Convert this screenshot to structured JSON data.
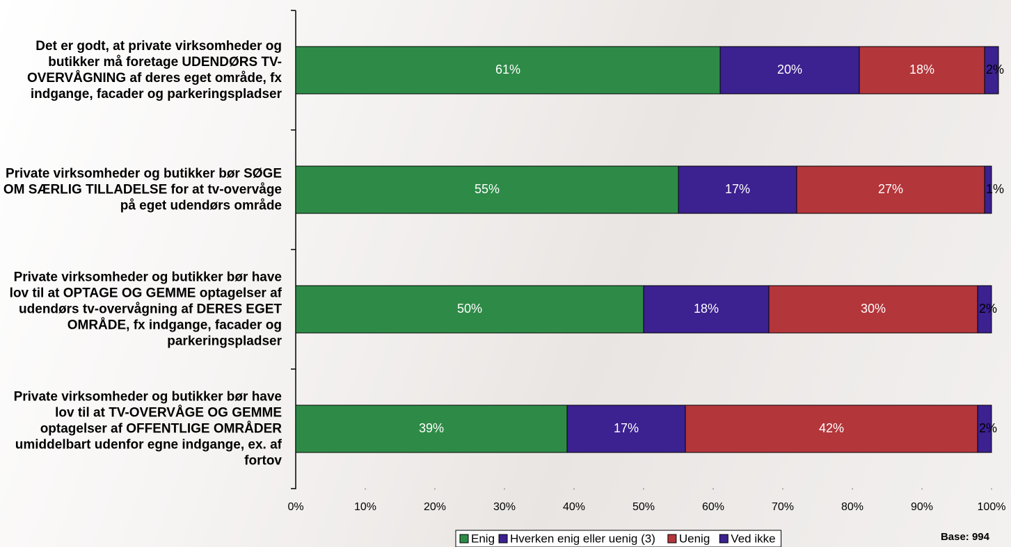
{
  "chart_data": {
    "type": "stacked-bar-horizontal",
    "categories": [
      "Det er godt, at private virksomheder og butikker må foretage UDENDØRS TV-OVERVÅGNING af deres eget område, fx indgange, facader og parkeringspladser",
      "Private virksomheder og butikker bør SØGE OM SÆRLIG TILLADELSE for at tv-overvåge på eget udendørs område",
      "Private virksomheder og butikker bør have lov til at OPTAGE OG GEMME optagelser af udendørs tv-overvågning af DERES EGET OMRÅDE, fx indgange, facader og parkeringspladser",
      "Private virksomheder og butikker bør have lov til at TV-OVERVÅGE OG GEMME optagelser af OFFENTLIGE OMRÅDER umiddelbart udenfor egne indgange, ex. af fortov"
    ],
    "series": [
      {
        "name": "Enig",
        "color": "#2e8b47",
        "values": [
          61,
          55,
          50,
          39
        ],
        "value_labels": [
          "61%",
          "55%",
          "50%",
          "39%"
        ]
      },
      {
        "name": "Hverken enig eller uenig (3)",
        "color": "#3c2190",
        "values": [
          20,
          17,
          18,
          17
        ],
        "value_labels": [
          "20%",
          "17%",
          "18%",
          "17%"
        ]
      },
      {
        "name": "Uenig",
        "color": "#b3363b",
        "values": [
          18,
          27,
          30,
          42
        ],
        "value_labels": [
          "18%",
          "27%",
          "30%",
          "42%"
        ]
      },
      {
        "name": "Ved ikke",
        "color": "#3c2190",
        "values": [
          2,
          1,
          2,
          2
        ],
        "value_labels": [
          "2%",
          "1%",
          "2%",
          "2%"
        ]
      }
    ],
    "xlim": [
      0,
      100
    ],
    "xticks": [
      {
        "value": 0,
        "label": "0%"
      },
      {
        "value": 10,
        "label": "10%"
      },
      {
        "value": 20,
        "label": "20%"
      },
      {
        "value": 30,
        "label": "30%"
      },
      {
        "value": 40,
        "label": "40%"
      },
      {
        "value": 50,
        "label": "50%"
      },
      {
        "value": 60,
        "label": "60%"
      },
      {
        "value": 70,
        "label": "70%"
      },
      {
        "value": 80,
        "label": "80%"
      },
      {
        "value": 90,
        "label": "90%"
      },
      {
        "value": 100,
        "label": "100%"
      }
    ],
    "annotation": "Base: 994"
  }
}
